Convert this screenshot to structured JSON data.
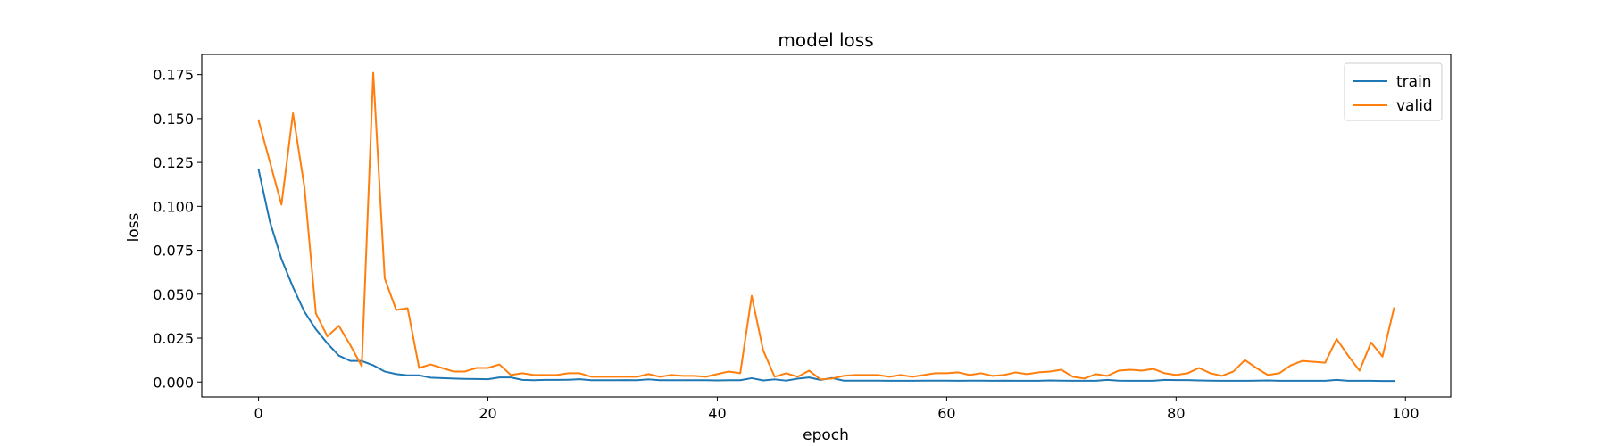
{
  "chart_data": {
    "type": "line",
    "title": "model loss",
    "xlabel": "epoch",
    "ylabel": "loss",
    "xlim": [
      -4.95,
      103.95
    ],
    "ylim": [
      -0.0085,
      0.1865
    ],
    "xticks": [
      0,
      20,
      40,
      60,
      80,
      100
    ],
    "xtick_labels": [
      "0",
      "20",
      "40",
      "60",
      "80",
      "100"
    ],
    "yticks": [
      0.0,
      0.025,
      0.05,
      0.075,
      0.1,
      0.125,
      0.15,
      0.175
    ],
    "ytick_labels": [
      "0.000",
      "0.025",
      "0.050",
      "0.075",
      "0.100",
      "0.125",
      "0.150",
      "0.175"
    ],
    "grid": false,
    "legend_position": "top-right",
    "series": [
      {
        "name": "train",
        "color": "#1f77b4",
        "x": [
          0,
          1,
          2,
          3,
          4,
          5,
          6,
          7,
          8,
          9,
          10,
          11,
          12,
          13,
          14,
          15,
          16,
          17,
          18,
          19,
          20,
          21,
          22,
          23,
          24,
          25,
          26,
          27,
          28,
          29,
          30,
          31,
          32,
          33,
          34,
          35,
          36,
          37,
          38,
          39,
          40,
          41,
          42,
          43,
          44,
          45,
          46,
          47,
          48,
          49,
          50,
          51,
          52,
          53,
          54,
          55,
          56,
          57,
          58,
          59,
          60,
          61,
          62,
          63,
          64,
          65,
          66,
          67,
          68,
          69,
          70,
          71,
          72,
          73,
          74,
          75,
          76,
          77,
          78,
          79,
          80,
          81,
          82,
          83,
          84,
          85,
          86,
          87,
          88,
          89,
          90,
          91,
          92,
          93,
          94,
          95,
          96,
          97,
          98,
          99
        ],
        "values": [
          0.121,
          0.091,
          0.07,
          0.054,
          0.04,
          0.03,
          0.022,
          0.015,
          0.012,
          0.012,
          0.0095,
          0.006,
          0.0045,
          0.0038,
          0.0038,
          0.0025,
          0.0022,
          0.002,
          0.0018,
          0.0017,
          0.0016,
          0.0026,
          0.0026,
          0.0012,
          0.001,
          0.0012,
          0.0012,
          0.0013,
          0.0016,
          0.001,
          0.001,
          0.001,
          0.0011,
          0.001,
          0.0015,
          0.001,
          0.001,
          0.001,
          0.001,
          0.001,
          0.0009,
          0.001,
          0.001,
          0.0022,
          0.0009,
          0.0015,
          0.0008,
          0.0019,
          0.0026,
          0.0012,
          0.0023,
          0.0008,
          0.0008,
          0.0008,
          0.0008,
          0.0007,
          0.0007,
          0.0007,
          0.0008,
          0.0008,
          0.0008,
          0.0007,
          0.0008,
          0.0008,
          0.0007,
          0.0008,
          0.0007,
          0.0007,
          0.0007,
          0.0009,
          0.0008,
          0.0007,
          0.0007,
          0.0007,
          0.0012,
          0.0008,
          0.0007,
          0.0007,
          0.0007,
          0.0012,
          0.0011,
          0.0011,
          0.0009,
          0.0008,
          0.0007,
          0.0007,
          0.0007,
          0.0008,
          0.0009,
          0.0007,
          0.0007,
          0.0007,
          0.0007,
          0.0007,
          0.0012,
          0.0007,
          0.0007,
          0.0007,
          0.0006,
          0.0006
        ]
      },
      {
        "name": "valid",
        "color": "#ff7f0e",
        "x": [
          0,
          1,
          2,
          3,
          4,
          5,
          6,
          7,
          8,
          9,
          10,
          11,
          12,
          13,
          14,
          15,
          16,
          17,
          18,
          19,
          20,
          21,
          22,
          23,
          24,
          25,
          26,
          27,
          28,
          29,
          30,
          31,
          32,
          33,
          34,
          35,
          36,
          37,
          38,
          39,
          40,
          41,
          42,
          43,
          44,
          45,
          46,
          47,
          48,
          49,
          50,
          51,
          52,
          53,
          54,
          55,
          56,
          57,
          58,
          59,
          60,
          61,
          62,
          63,
          64,
          65,
          66,
          67,
          68,
          69,
          70,
          71,
          72,
          73,
          74,
          75,
          76,
          77,
          78,
          79,
          80,
          81,
          82,
          83,
          84,
          85,
          86,
          87,
          88,
          89,
          90,
          91,
          92,
          93,
          94,
          95,
          96,
          97,
          98,
          99
        ],
        "values": [
          0.149,
          0.125,
          0.101,
          0.153,
          0.111,
          0.039,
          0.026,
          0.032,
          0.021,
          0.009,
          0.176,
          0.059,
          0.041,
          0.042,
          0.008,
          0.01,
          0.008,
          0.006,
          0.006,
          0.008,
          0.008,
          0.01,
          0.004,
          0.005,
          0.004,
          0.004,
          0.004,
          0.005,
          0.005,
          0.003,
          0.003,
          0.003,
          0.003,
          0.003,
          0.0045,
          0.003,
          0.004,
          0.0035,
          0.0035,
          0.003,
          0.0045,
          0.006,
          0.005,
          0.049,
          0.018,
          0.003,
          0.005,
          0.003,
          0.0065,
          0.0015,
          0.002,
          0.0035,
          0.004,
          0.004,
          0.004,
          0.003,
          0.004,
          0.003,
          0.004,
          0.005,
          0.005,
          0.0055,
          0.004,
          0.005,
          0.0035,
          0.004,
          0.0055,
          0.0045,
          0.0055,
          0.006,
          0.007,
          0.003,
          0.002,
          0.0045,
          0.0035,
          0.0065,
          0.007,
          0.0065,
          0.0075,
          0.005,
          0.004,
          0.005,
          0.008,
          0.005,
          0.0035,
          0.006,
          0.0125,
          0.008,
          0.004,
          0.005,
          0.0095,
          0.012,
          0.0115,
          0.011,
          0.0245,
          0.015,
          0.0065,
          0.0225,
          0.0145,
          0.042
        ]
      }
    ]
  }
}
